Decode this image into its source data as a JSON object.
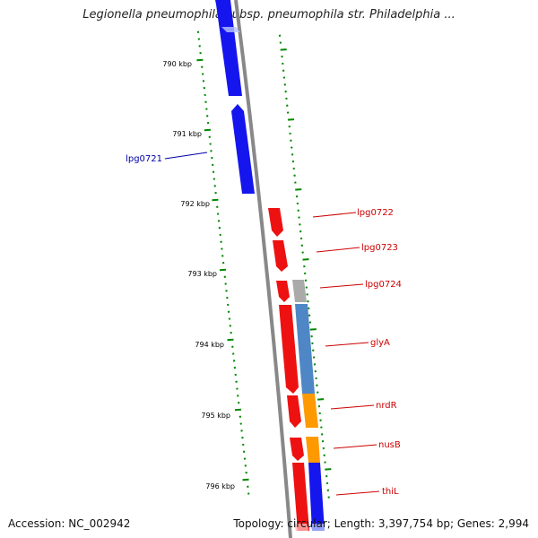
{
  "title": "Legionella pneumophila subsp. pneumophila str. Philadelphia ...",
  "accession": "Accession: NC_002942",
  "summary": "Topology: circular; Length: 3,397,754 bp; Genes: 2,994",
  "ticks": [
    "790 kbp",
    "791 kbp",
    "792 kbp",
    "793 kbp",
    "794 kbp",
    "795 kbp",
    "796 kbp"
  ],
  "colors": {
    "forward_gene": "#0000ff",
    "reverse_gene": "#ff0000",
    "tick": "#008800",
    "backbone": "#808080",
    "cds_blue": "#4f86c6",
    "cds_orange": "#ff9900",
    "cds_gray": "#aaaaaa"
  },
  "genes": [
    {
      "label": "lpg0721",
      "color": "#0000aa"
    },
    {
      "label": "lpg0722",
      "color": "#cc0000"
    },
    {
      "label": "lpg0723",
      "color": "#cc0000"
    },
    {
      "label": "lpg0724",
      "color": "#cc0000"
    },
    {
      "label": "glyA",
      "color": "#cc0000"
    },
    {
      "label": "nrdR",
      "color": "#cc0000"
    },
    {
      "label": "nusB",
      "color": "#cc0000"
    },
    {
      "label": "thiL",
      "color": "#cc0000"
    }
  ]
}
